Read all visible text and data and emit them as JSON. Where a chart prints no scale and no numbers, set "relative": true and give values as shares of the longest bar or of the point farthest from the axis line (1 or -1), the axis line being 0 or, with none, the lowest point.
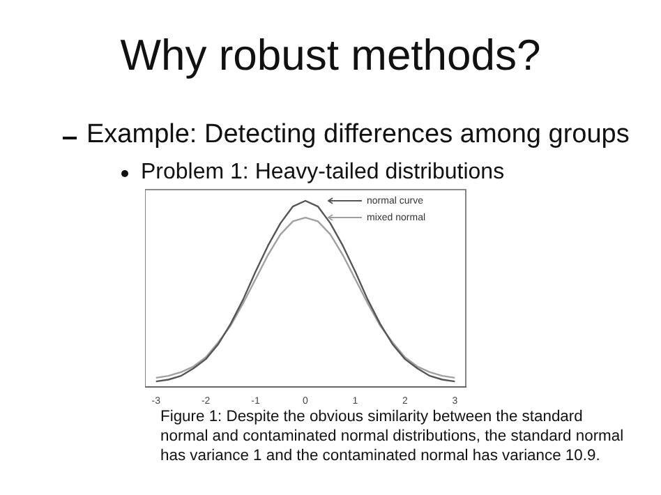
{
  "chart_data": {
    "type": "line",
    "title": "Why robust methods?",
    "subtitle": "Example: Detecting differences among groups",
    "annotations": [
      "Problem 1: Heavy-tailed distributions",
      "Figure 1: Despite the obvious similarity between the standard normal and contaminated normal distributions, the standard normal has variance 1 and the contaminated normal has variance 10.9."
    ],
    "relative": true,
    "x": [
      -3,
      -2.75,
      -2.5,
      -2.25,
      -2,
      -1.75,
      -1.5,
      -1.25,
      -1,
      -0.75,
      -0.5,
      -0.25,
      0,
      0.25,
      0.5,
      0.75,
      1,
      1.25,
      1.5,
      1.75,
      2,
      2.25,
      2.5,
      2.75,
      3
    ],
    "series": [
      {
        "name": "normal curve",
        "color": "#555555",
        "values": [
          0.03,
          0.04,
          0.06,
          0.1,
          0.15,
          0.23,
          0.34,
          0.47,
          0.62,
          0.76,
          0.88,
          0.97,
          1,
          0.97,
          0.88,
          0.76,
          0.62,
          0.47,
          0.34,
          0.23,
          0.15,
          0.1,
          0.06,
          0.04,
          0.03
        ]
      },
      {
        "name": "mixed normal",
        "color": "#a0a0a0",
        "values": [
          0.05,
          0.06,
          0.08,
          0.11,
          0.16,
          0.24,
          0.33,
          0.45,
          0.58,
          0.71,
          0.82,
          0.89,
          0.91,
          0.89,
          0.82,
          0.71,
          0.58,
          0.45,
          0.33,
          0.24,
          0.16,
          0.11,
          0.08,
          0.06,
          0.05
        ]
      }
    ],
    "xlim": [
      -3.22,
      3.22
    ],
    "xticks": [
      -3,
      -2,
      -1,
      0,
      1,
      2,
      3
    ],
    "tick_labels": "x",
    "marker": "none",
    "line_style": "solid",
    "legend": "top right",
    "grid": false
  }
}
